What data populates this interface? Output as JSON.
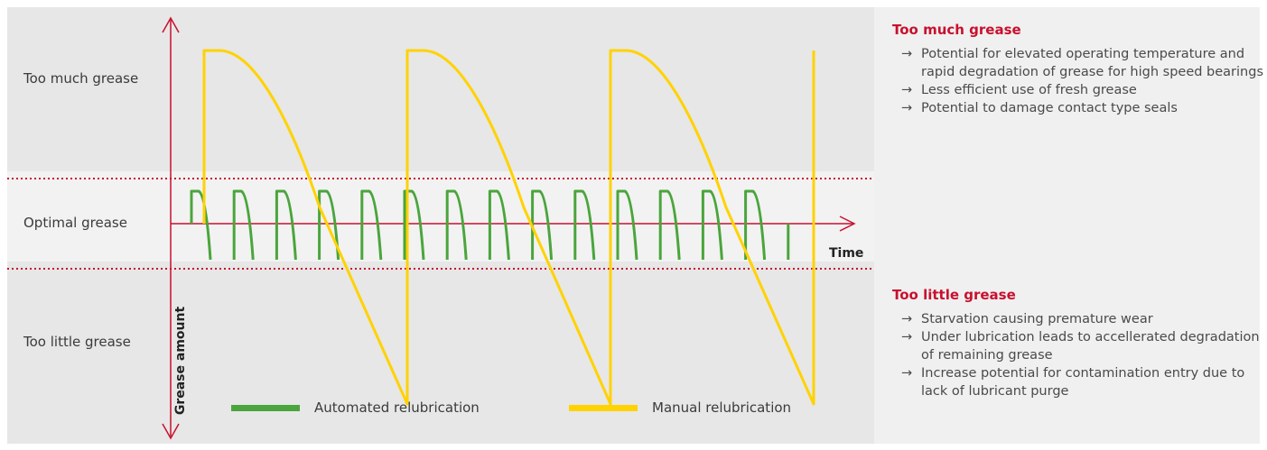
{
  "chart_data": {
    "type": "line",
    "title": "",
    "xlabel": "Time",
    "ylabel": "Grease amount",
    "y_zones": [
      "Too much grease",
      "Optimal grease",
      "Too little grease"
    ],
    "series": [
      {
        "name": "Automated relubrication",
        "color": "#4aa53c",
        "description_cycles": 14,
        "points_normalized": "repeated small saw-tooth within optimal band"
      },
      {
        "name": "Manual relubrication",
        "color": "#ffd200",
        "cycles": 3,
        "points_normalized": "large saw-tooth spanning too-much to too-little zones"
      }
    ],
    "grid": false,
    "legend_position": "bottom"
  },
  "info": {
    "too_much": {
      "title": "Too much grease",
      "items": [
        "Potential for elevated operating temperature and rapid degradation of grease for high speed bearings",
        "Less efficient use of fresh grease",
        "Potential to damage contact type seals"
      ]
    },
    "too_little": {
      "title": "Too little grease",
      "items": [
        "Starvation causing premature wear",
        "Under lubrication leads to accellerated degradation of remaining grease",
        "Increase potential for contamination entry due to lack of lubricant purge"
      ]
    }
  },
  "arrow_glyph": "→"
}
